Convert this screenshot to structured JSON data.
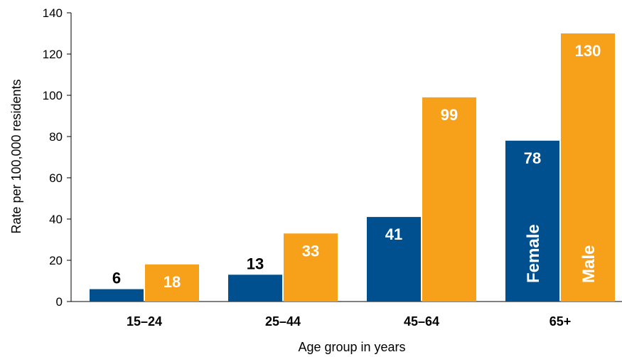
{
  "chart_data": {
    "type": "bar",
    "categories": [
      "15–24",
      "25–44",
      "45–64",
      "65+"
    ],
    "series": [
      {
        "name": "Female",
        "values": [
          6,
          13,
          41,
          78
        ],
        "color": "#00508f"
      },
      {
        "name": "Male",
        "values": [
          18,
          33,
          99,
          130
        ],
        "color": "#f7a11a"
      }
    ],
    "xlabel": "Age group in years",
    "ylabel": "Rate per 100,000 residents",
    "ylim": [
      0,
      140
    ],
    "yticks": [
      0,
      20,
      40,
      60,
      80,
      100,
      120,
      140
    ],
    "grid": false,
    "legend": "none",
    "series_label_category": "65+"
  }
}
